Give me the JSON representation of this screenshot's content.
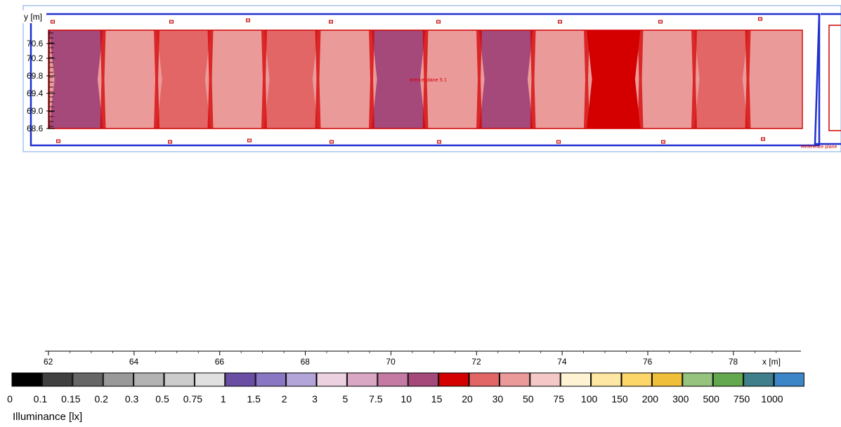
{
  "chart_data": {
    "type": "heatmap",
    "title": "",
    "y_axis_label": "y [m]",
    "x_axis_label": "x [m]",
    "y_ticks": [
      "70.6",
      "70.2",
      "69.8",
      "69.4",
      "69.0",
      "68.6"
    ],
    "x_ticks": [
      "62",
      "64",
      "66",
      "68",
      "70",
      "72",
      "74",
      "76",
      "78"
    ],
    "x_range": [
      62,
      79
    ],
    "plane_label": "erence plane S 1",
    "side_plane_label": "Reference plane",
    "legend": {
      "title": "Illuminance [lx]",
      "levels": [
        "0",
        "0.1",
        "0.15",
        "0.2",
        "0.3",
        "0.5",
        "0.75",
        "1",
        "1.5",
        "2",
        "3",
        "5",
        "7.5",
        "10",
        "15",
        "20",
        "30",
        "50",
        "75",
        "100",
        "150",
        "200",
        "300",
        "500",
        "750",
        "1000"
      ],
      "colors": [
        "#000000",
        "#404040",
        "#666666",
        "#999999",
        "#b3b3b3",
        "#cccccc",
        "#e0e0e0",
        "#6a4ea4",
        "#8a77c4",
        "#b3a5d8",
        "#ecd1e0",
        "#d9a7c4",
        "#c47aa3",
        "#a5487a",
        "#d40000",
        "#e26666",
        "#eb9a9a",
        "#f5c8c8",
        "#fff3d4",
        "#fee7a2",
        "#fdd66a",
        "#efbf3a",
        "#96c47e",
        "#63a74e",
        "#3f7f8c",
        "#3c86c8"
      ]
    },
    "stripes": [
      {
        "color": "#a5487a"
      },
      {
        "color": "#eb9a9a"
      },
      {
        "color": "#e26666"
      },
      {
        "color": "#eb9a9a"
      },
      {
        "color": "#e26666"
      },
      {
        "color": "#eb9a9a"
      },
      {
        "color": "#a5487a"
      },
      {
        "color": "#eb9a9a"
      },
      {
        "color": "#a5487a"
      },
      {
        "color": "#eb9a9a"
      },
      {
        "color": "#d40000"
      },
      {
        "color": "#eb9a9a"
      },
      {
        "color": "#e26666"
      },
      {
        "color": "#eb9a9a"
      }
    ]
  }
}
